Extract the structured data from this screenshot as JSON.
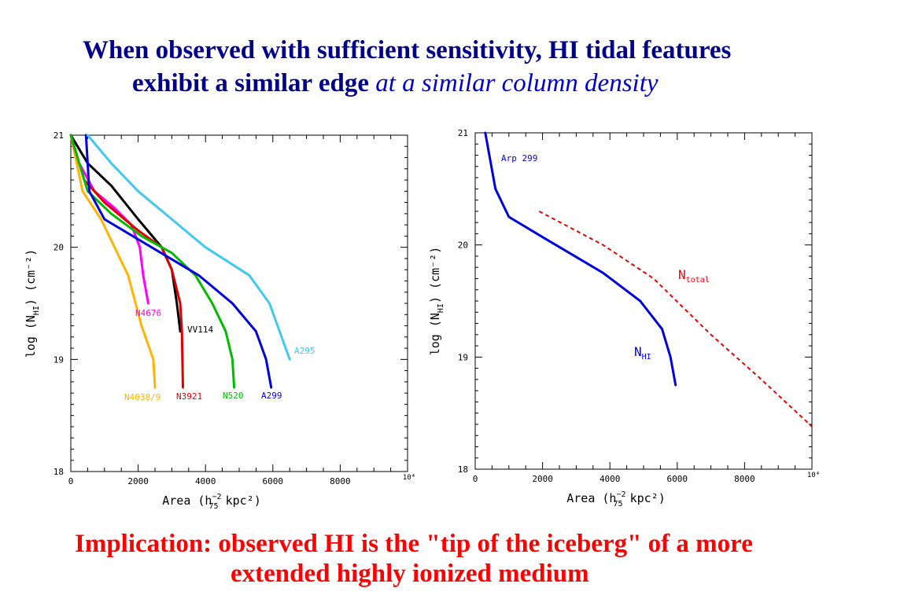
{
  "title": {
    "line1": "When observed with sufficient sensitivity, HI tidal features",
    "line2_bold": "exhibit a similar edge ",
    "line2_italic": "at a similar column density"
  },
  "footer": {
    "line1": "Implication: observed HI is the \"tip of the iceberg\" of a more",
    "line2": "extended highly ionized medium"
  },
  "chart_data": [
    {
      "type": "line",
      "xlabel": "Area (h",
      "xlabel_sub": "75",
      "xlabel_sup": "−2",
      "xlabel_tail": " kpc²)",
      "ylabel": "log (N",
      "ylabel_sub": "HI",
      "ylabel_tail": ") (cm⁻²)",
      "xlim": [
        0,
        10000
      ],
      "ylim": [
        18,
        21
      ],
      "xticks": [
        "0",
        "2000",
        "4000",
        "6000",
        "8000",
        "10⁴"
      ],
      "yticks": [
        "18",
        "19",
        "20",
        "21"
      ],
      "series": [
        {
          "name": "N4038/9",
          "color": "#ffb400",
          "labelColor": "#ffb400",
          "x": [
            0,
            350,
            900,
            1700,
            2100,
            2450,
            2500
          ],
          "y": [
            21,
            20.5,
            20.25,
            19.75,
            19.3,
            19.0,
            18.75
          ]
        },
        {
          "name": "N4676",
          "color": "#ff00ff",
          "labelColor": "#ff00ff",
          "x": [
            0,
            250,
            700,
            1300,
            1800,
            2050,
            2150,
            2300
          ],
          "y": [
            21,
            20.75,
            20.5,
            20.35,
            20.2,
            20.0,
            19.75,
            19.5
          ]
        },
        {
          "name": "VV114",
          "color": "#000000",
          "labelColor": "#000000",
          "x": [
            0,
            500,
            1200,
            2000,
            2700,
            3000,
            3150,
            3250
          ],
          "y": [
            21,
            20.75,
            20.55,
            20.25,
            20.0,
            19.8,
            19.5,
            19.25
          ]
        },
        {
          "name": "N3921",
          "color": "#dd0000",
          "labelColor": "#dd0000",
          "x": [
            0,
            400,
            1000,
            2000,
            2700,
            3000,
            3250,
            3300,
            3330
          ],
          "y": [
            21,
            20.6,
            20.4,
            20.15,
            20.0,
            19.8,
            19.5,
            19.25,
            18.75
          ]
        },
        {
          "name": "N520",
          "color": "#00bb00",
          "labelColor": "#00bb00",
          "x": [
            0,
            500,
            1200,
            2100,
            3000,
            3700,
            4200,
            4600,
            4800,
            4850
          ],
          "y": [
            21,
            20.5,
            20.3,
            20.1,
            19.95,
            19.75,
            19.5,
            19.25,
            19.0,
            18.75
          ]
        },
        {
          "name": "A299",
          "color": "#0000dd",
          "labelColor": "#0000dd",
          "x": [
            450,
            550,
            1000,
            2400,
            3800,
            4800,
            5500,
            5800,
            5950
          ],
          "y": [
            21,
            20.5,
            20.25,
            20.0,
            19.75,
            19.5,
            19.25,
            19.0,
            18.75
          ]
        },
        {
          "name": "A295",
          "color": "#40c8f0",
          "labelColor": "#40c8f0",
          "x": [
            500,
            1200,
            2000,
            3000,
            4000,
            5300,
            5900,
            6200,
            6500
          ],
          "y": [
            21,
            20.75,
            20.5,
            20.25,
            20.0,
            19.75,
            19.5,
            19.25,
            19.0
          ]
        }
      ],
      "labels": [
        "N4038/9",
        "N4676",
        "VV114",
        "N3921",
        "N520",
        "A299",
        "A295"
      ]
    },
    {
      "type": "line",
      "xlabel": "Area (h",
      "xlabel_sub": "75",
      "xlabel_sup": "−2",
      "xlabel_tail": " kpc²)",
      "ylabel": "log (N",
      "ylabel_sub": "HI",
      "ylabel_tail": ") (cm⁻²)",
      "xlim": [
        0,
        10000
      ],
      "ylim": [
        18,
        21
      ],
      "xticks": [
        "0",
        "2000",
        "4000",
        "6000",
        "8000",
        "10⁴"
      ],
      "yticks": [
        "18",
        "19",
        "20",
        "21"
      ],
      "annotation": "Arp 299",
      "series": [
        {
          "name": "N_HI",
          "label_main": "N",
          "label_sub": "HI",
          "color": "#0000dd",
          "dashed": false,
          "x": [
            300,
            600,
            1000,
            2000,
            3800,
            4900,
            5550,
            5800,
            5950
          ],
          "y": [
            21,
            20.5,
            20.25,
            20.07,
            19.75,
            19.5,
            19.25,
            19.0,
            18.75
          ]
        },
        {
          "name": "N_total",
          "label_main": "N",
          "label_sub": "total",
          "color": "#ee0000",
          "dashed": true,
          "x": [
            1900,
            3800,
            5300,
            7000,
            8500,
            10000
          ],
          "y": [
            20.3,
            20.0,
            19.7,
            19.2,
            18.8,
            18.38
          ]
        }
      ]
    }
  ]
}
